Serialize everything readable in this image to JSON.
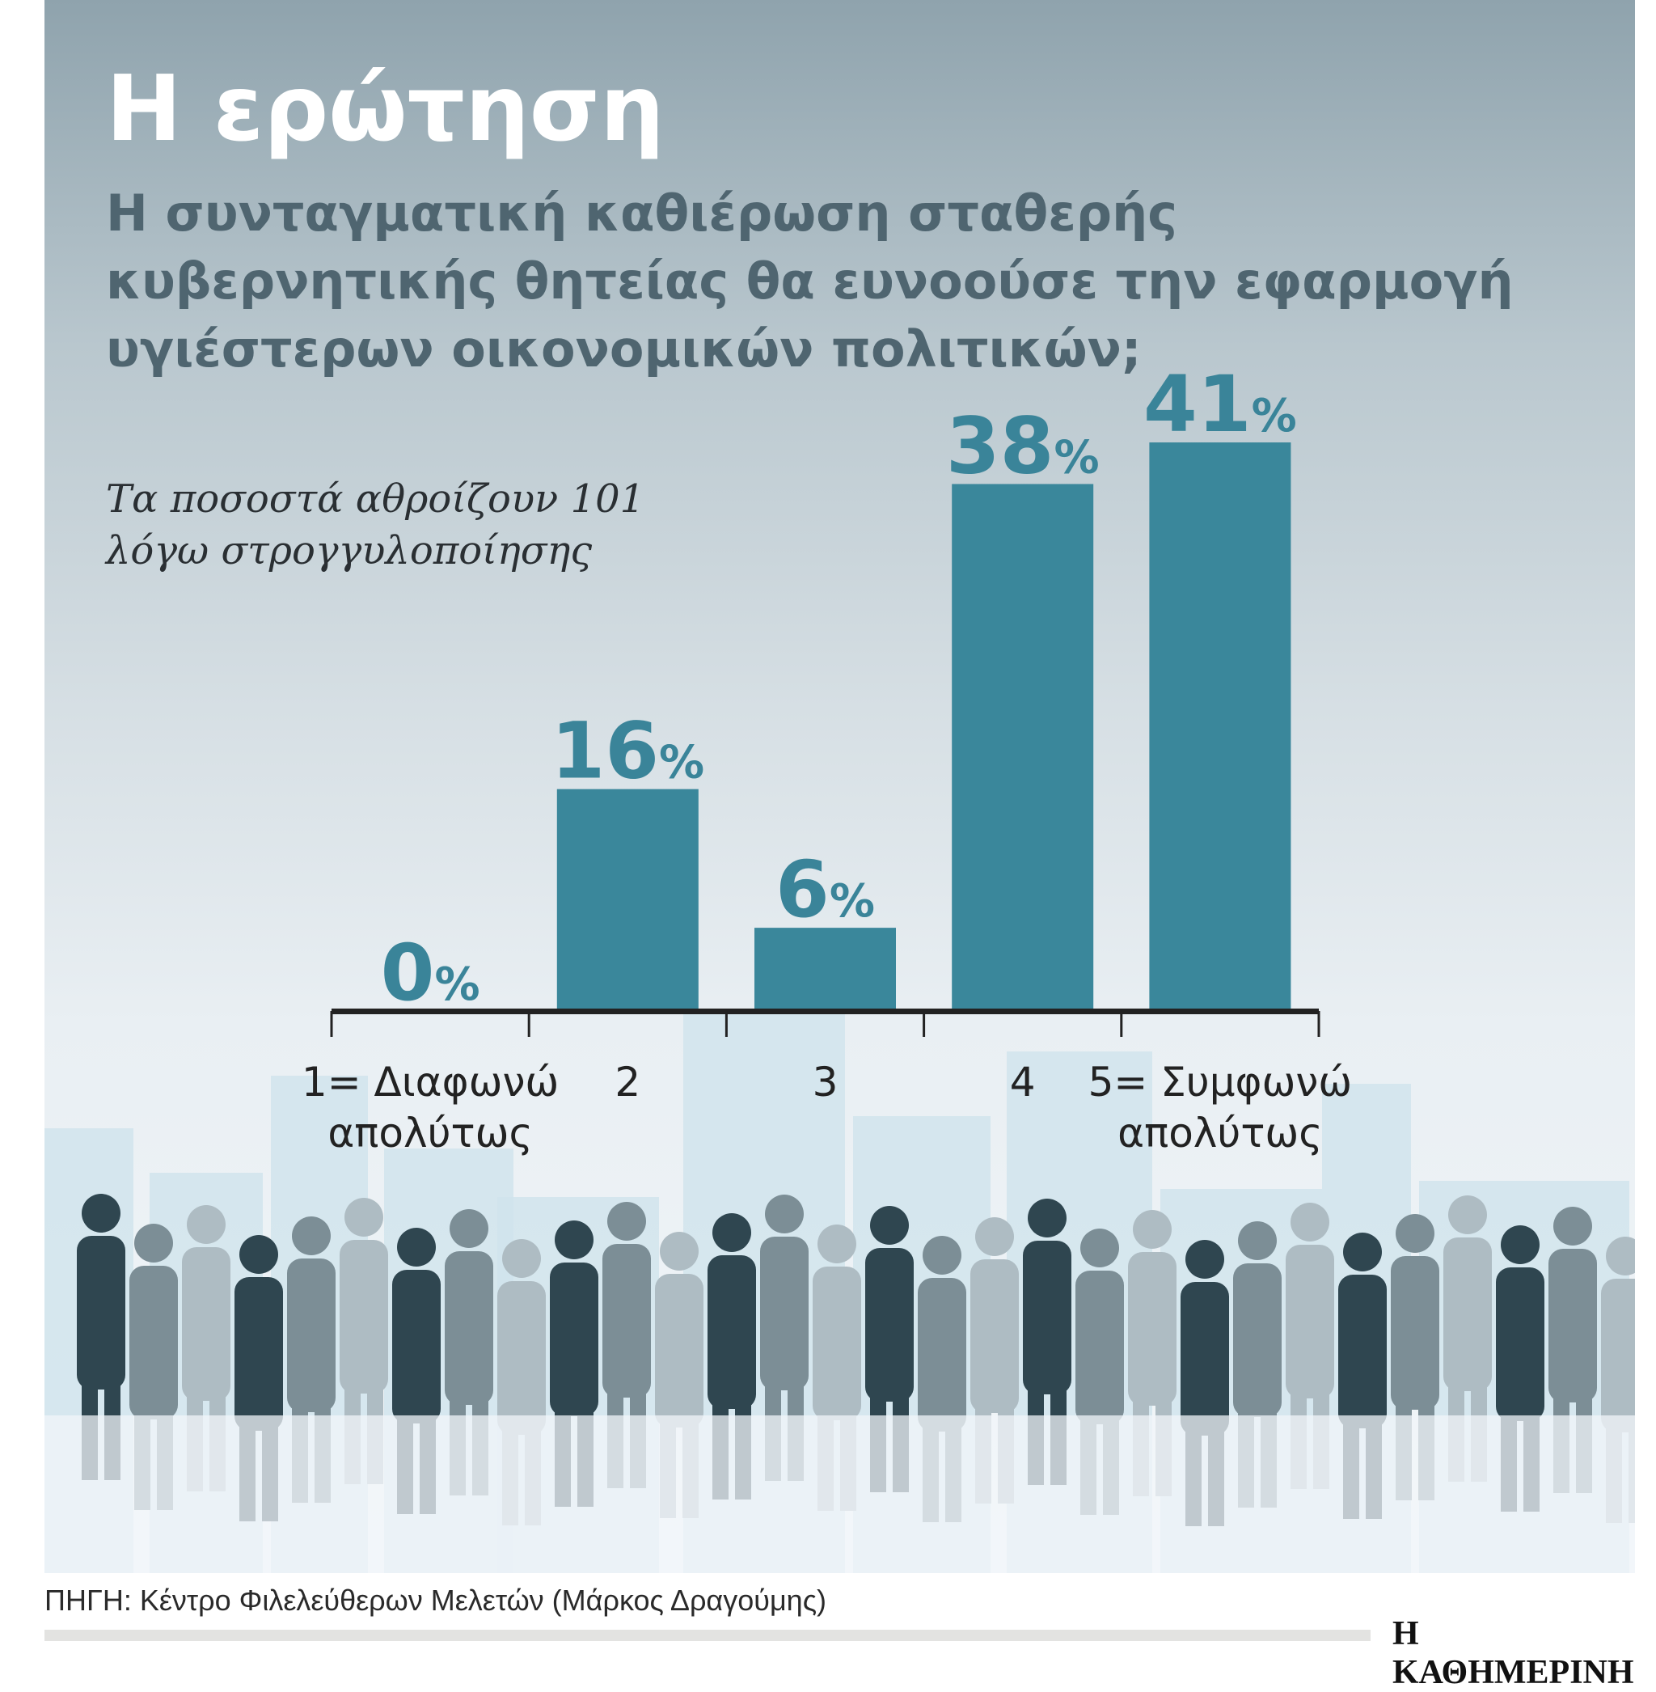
{
  "title": "Η ερώτηση",
  "subtitle": "Η συνταγματική καθιέρωση σταθερής κυβερνητικής θητείας θα ευνοούσε την εφαρμογή υγιέστερων οικονομικών πολιτικών;",
  "note_lines": [
    "Τα ποσοστά αθροίζουν 101",
    "λόγω στρογγυλοποίησης"
  ],
  "source": "ΠΗΓΗ: Κέντρο Φιλελεύθερων Μελετών (Μάρκος Δραγούμης)",
  "logo": "Η ΚΑΘΗΜΕΡΙΝΗ",
  "colors": {
    "bar": "#3a879b",
    "label": "#3a8499",
    "axis": "#222222"
  },
  "chart_data": {
    "type": "bar",
    "categories": [
      [
        "1= Διαφωνώ",
        "απολύτως"
      ],
      [
        "2"
      ],
      [
        "3"
      ],
      [
        "4"
      ],
      [
        "5= Συμφωνώ",
        "απολύτως"
      ]
    ],
    "values": [
      0,
      16,
      6,
      38,
      41
    ],
    "unit": "%",
    "ylim": [
      0,
      45
    ],
    "grid": false
  }
}
